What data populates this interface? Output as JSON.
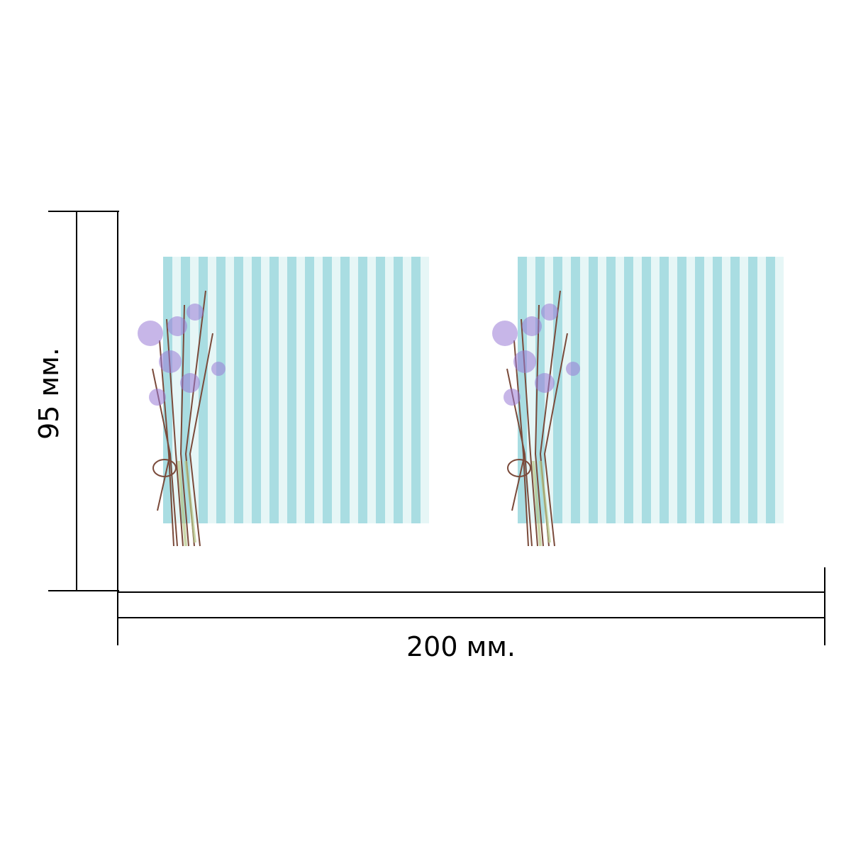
{
  "dimensions": {
    "height_label": "95 мм.",
    "width_label": "200 мм."
  }
}
